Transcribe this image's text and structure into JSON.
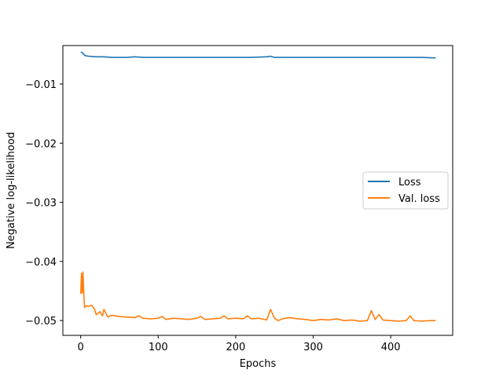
{
  "chart_data": {
    "type": "line",
    "title": "",
    "xlabel": "Epochs",
    "ylabel": "Negative log-likelihood",
    "xlim": [
      -23,
      480
    ],
    "ylim": [
      -0.0525,
      -0.0035
    ],
    "xticks": [
      0,
      100,
      200,
      300,
      400
    ],
    "xtick_labels": [
      "0",
      "100",
      "200",
      "300",
      "400"
    ],
    "yticks": [
      -0.05,
      -0.04,
      -0.03,
      -0.02,
      -0.01
    ],
    "ytick_labels": [
      "−0.05",
      "−0.04",
      "−0.03",
      "−0.02",
      "−0.01"
    ],
    "grid": false,
    "legend_position": "center-right",
    "series": [
      {
        "name": "Loss",
        "color": "#1f77b4",
        "x": [
          0,
          2,
          4,
          6,
          10,
          20,
          30,
          40,
          50,
          60,
          70,
          80,
          90,
          100,
          120,
          140,
          160,
          180,
          200,
          220,
          240,
          245,
          250,
          260,
          280,
          300,
          320,
          340,
          360,
          380,
          400,
          420,
          440,
          458
        ],
        "y": [
          -0.0046,
          -0.0047,
          -0.005,
          -0.0052,
          -0.0053,
          -0.0054,
          -0.0054,
          -0.0055,
          -0.0055,
          -0.0055,
          -0.0054,
          -0.0055,
          -0.0055,
          -0.0055,
          -0.0055,
          -0.0055,
          -0.0055,
          -0.0055,
          -0.0055,
          -0.0055,
          -0.0054,
          -0.0053,
          -0.0055,
          -0.0055,
          -0.0055,
          -0.0055,
          -0.0055,
          -0.0055,
          -0.0055,
          -0.0055,
          -0.0055,
          -0.0055,
          -0.0055,
          -0.0056
        ]
      },
      {
        "name": "Val. loss",
        "color": "#ff7f0e",
        "x": [
          0,
          1,
          2,
          3,
          4,
          5,
          7,
          10,
          14,
          18,
          20,
          22,
          25,
          28,
          30,
          35,
          40,
          50,
          60,
          70,
          75,
          80,
          90,
          100,
          105,
          110,
          120,
          130,
          140,
          150,
          155,
          160,
          170,
          180,
          185,
          190,
          200,
          210,
          215,
          220,
          230,
          240,
          245,
          250,
          255,
          260,
          270,
          280,
          290,
          300,
          310,
          320,
          330,
          340,
          350,
          360,
          370,
          375,
          380,
          385,
          390,
          400,
          410,
          420,
          425,
          430,
          440,
          450,
          458
        ],
        "y": [
          -0.0455,
          -0.042,
          -0.0453,
          -0.0418,
          -0.0455,
          -0.0478,
          -0.0475,
          -0.0476,
          -0.0474,
          -0.0481,
          -0.049,
          -0.0488,
          -0.0485,
          -0.0492,
          -0.0481,
          -0.0494,
          -0.0491,
          -0.0493,
          -0.0494,
          -0.0495,
          -0.0492,
          -0.0496,
          -0.0497,
          -0.0496,
          -0.0493,
          -0.0498,
          -0.0496,
          -0.0497,
          -0.0498,
          -0.0496,
          -0.0493,
          -0.0498,
          -0.0497,
          -0.0496,
          -0.0492,
          -0.0497,
          -0.0496,
          -0.0497,
          -0.0492,
          -0.0497,
          -0.0496,
          -0.0499,
          -0.0481,
          -0.0496,
          -0.05,
          -0.0497,
          -0.0495,
          -0.0497,
          -0.0498,
          -0.05,
          -0.0498,
          -0.0499,
          -0.0497,
          -0.05,
          -0.0499,
          -0.0501,
          -0.05,
          -0.0483,
          -0.0498,
          -0.049,
          -0.0499,
          -0.05,
          -0.0501,
          -0.05,
          -0.0492,
          -0.05,
          -0.0501,
          -0.05,
          -0.05
        ]
      }
    ]
  }
}
